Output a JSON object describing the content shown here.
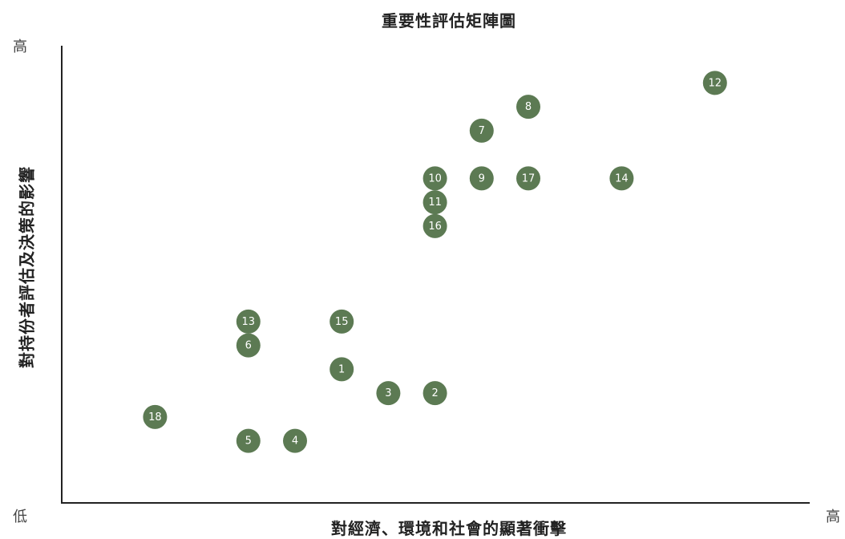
{
  "chart_data": {
    "type": "scatter",
    "title": "重要性評估矩陣圖",
    "xlabel": "對經濟、環境和社會的顯著衝擊",
    "ylabel": "對持份者評估及決策的影響",
    "x_low_label": "低",
    "x_high_label": "高",
    "y_high_label": "高",
    "marker_color": "#5c7a53",
    "xlim": [
      0,
      16
    ],
    "ylim": [
      0,
      19
    ],
    "grid": false,
    "points": [
      {
        "label": "1",
        "x": 6,
        "y": 5.6
      },
      {
        "label": "2",
        "x": 8,
        "y": 4.6
      },
      {
        "label": "3",
        "x": 7,
        "y": 4.6
      },
      {
        "label": "4",
        "x": 5,
        "y": 2.6
      },
      {
        "label": "5",
        "x": 4,
        "y": 2.6
      },
      {
        "label": "6",
        "x": 4,
        "y": 6.6
      },
      {
        "label": "7",
        "x": 9,
        "y": 15.6
      },
      {
        "label": "8",
        "x": 10,
        "y": 16.6
      },
      {
        "label": "9",
        "x": 9,
        "y": 13.6
      },
      {
        "label": "10",
        "x": 8,
        "y": 13.6
      },
      {
        "label": "11",
        "x": 8,
        "y": 12.6
      },
      {
        "label": "12",
        "x": 14,
        "y": 17.6
      },
      {
        "label": "13",
        "x": 4,
        "y": 7.6
      },
      {
        "label": "14",
        "x": 12,
        "y": 13.6
      },
      {
        "label": "15",
        "x": 6,
        "y": 7.6
      },
      {
        "label": "16",
        "x": 8,
        "y": 11.6
      },
      {
        "label": "17",
        "x": 10,
        "y": 13.6
      },
      {
        "label": "18",
        "x": 2,
        "y": 3.6
      }
    ]
  }
}
